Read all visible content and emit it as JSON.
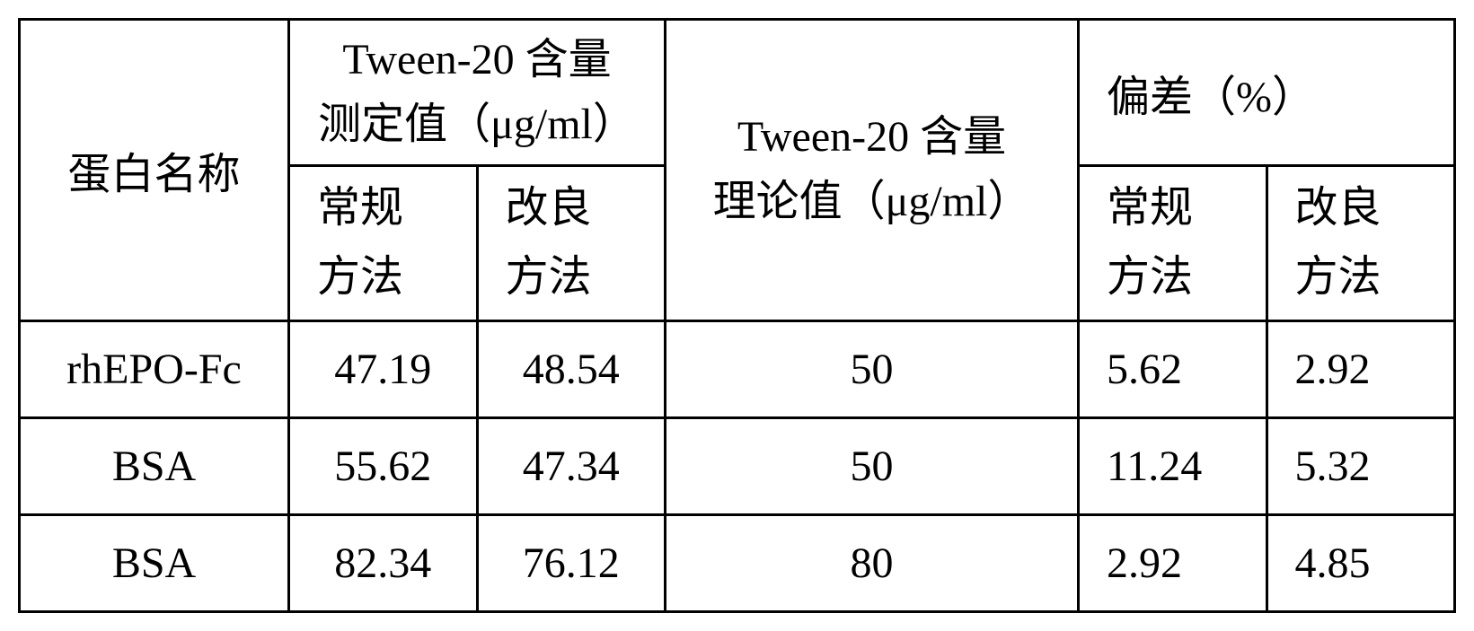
{
  "table": {
    "headers": {
      "protein_name": "蛋白名称",
      "measured_group_line1": "Tween-20 含量",
      "measured_group_line2": "测定值（μg/ml）",
      "theory_line1": "Tween-20 含量",
      "theory_line2": "理论值（μg/ml）",
      "deviation_group": "偏差（%）",
      "conventional_line1": "常规",
      "conventional_line2": "方法",
      "improved_line1": "改良",
      "improved_line2": "方法"
    },
    "rows": [
      {
        "protein": "rhEPO-Fc",
        "measured_conventional": "47.19",
        "measured_improved": "48.54",
        "theory": "50",
        "deviation_conventional": "5.62",
        "deviation_improved": "2.92"
      },
      {
        "protein": "BSA",
        "measured_conventional": "55.62",
        "measured_improved": "47.34",
        "theory": "50",
        "deviation_conventional": "11.24",
        "deviation_improved": "5.32"
      },
      {
        "protein": "BSA",
        "measured_conventional": "82.34",
        "measured_improved": "76.12",
        "theory": "80",
        "deviation_conventional": "2.92",
        "deviation_improved": "4.85"
      }
    ],
    "styling": {
      "border_color": "#000000",
      "border_width": 3,
      "background_color": "#ffffff",
      "text_color": "#000000",
      "font_size": 48,
      "font_family_cjk": "SimSun",
      "font_family_latin": "Times New Roman",
      "column_widths": {
        "protein": 300,
        "measured": 230,
        "theory": 460,
        "deviation": 180
      }
    }
  }
}
